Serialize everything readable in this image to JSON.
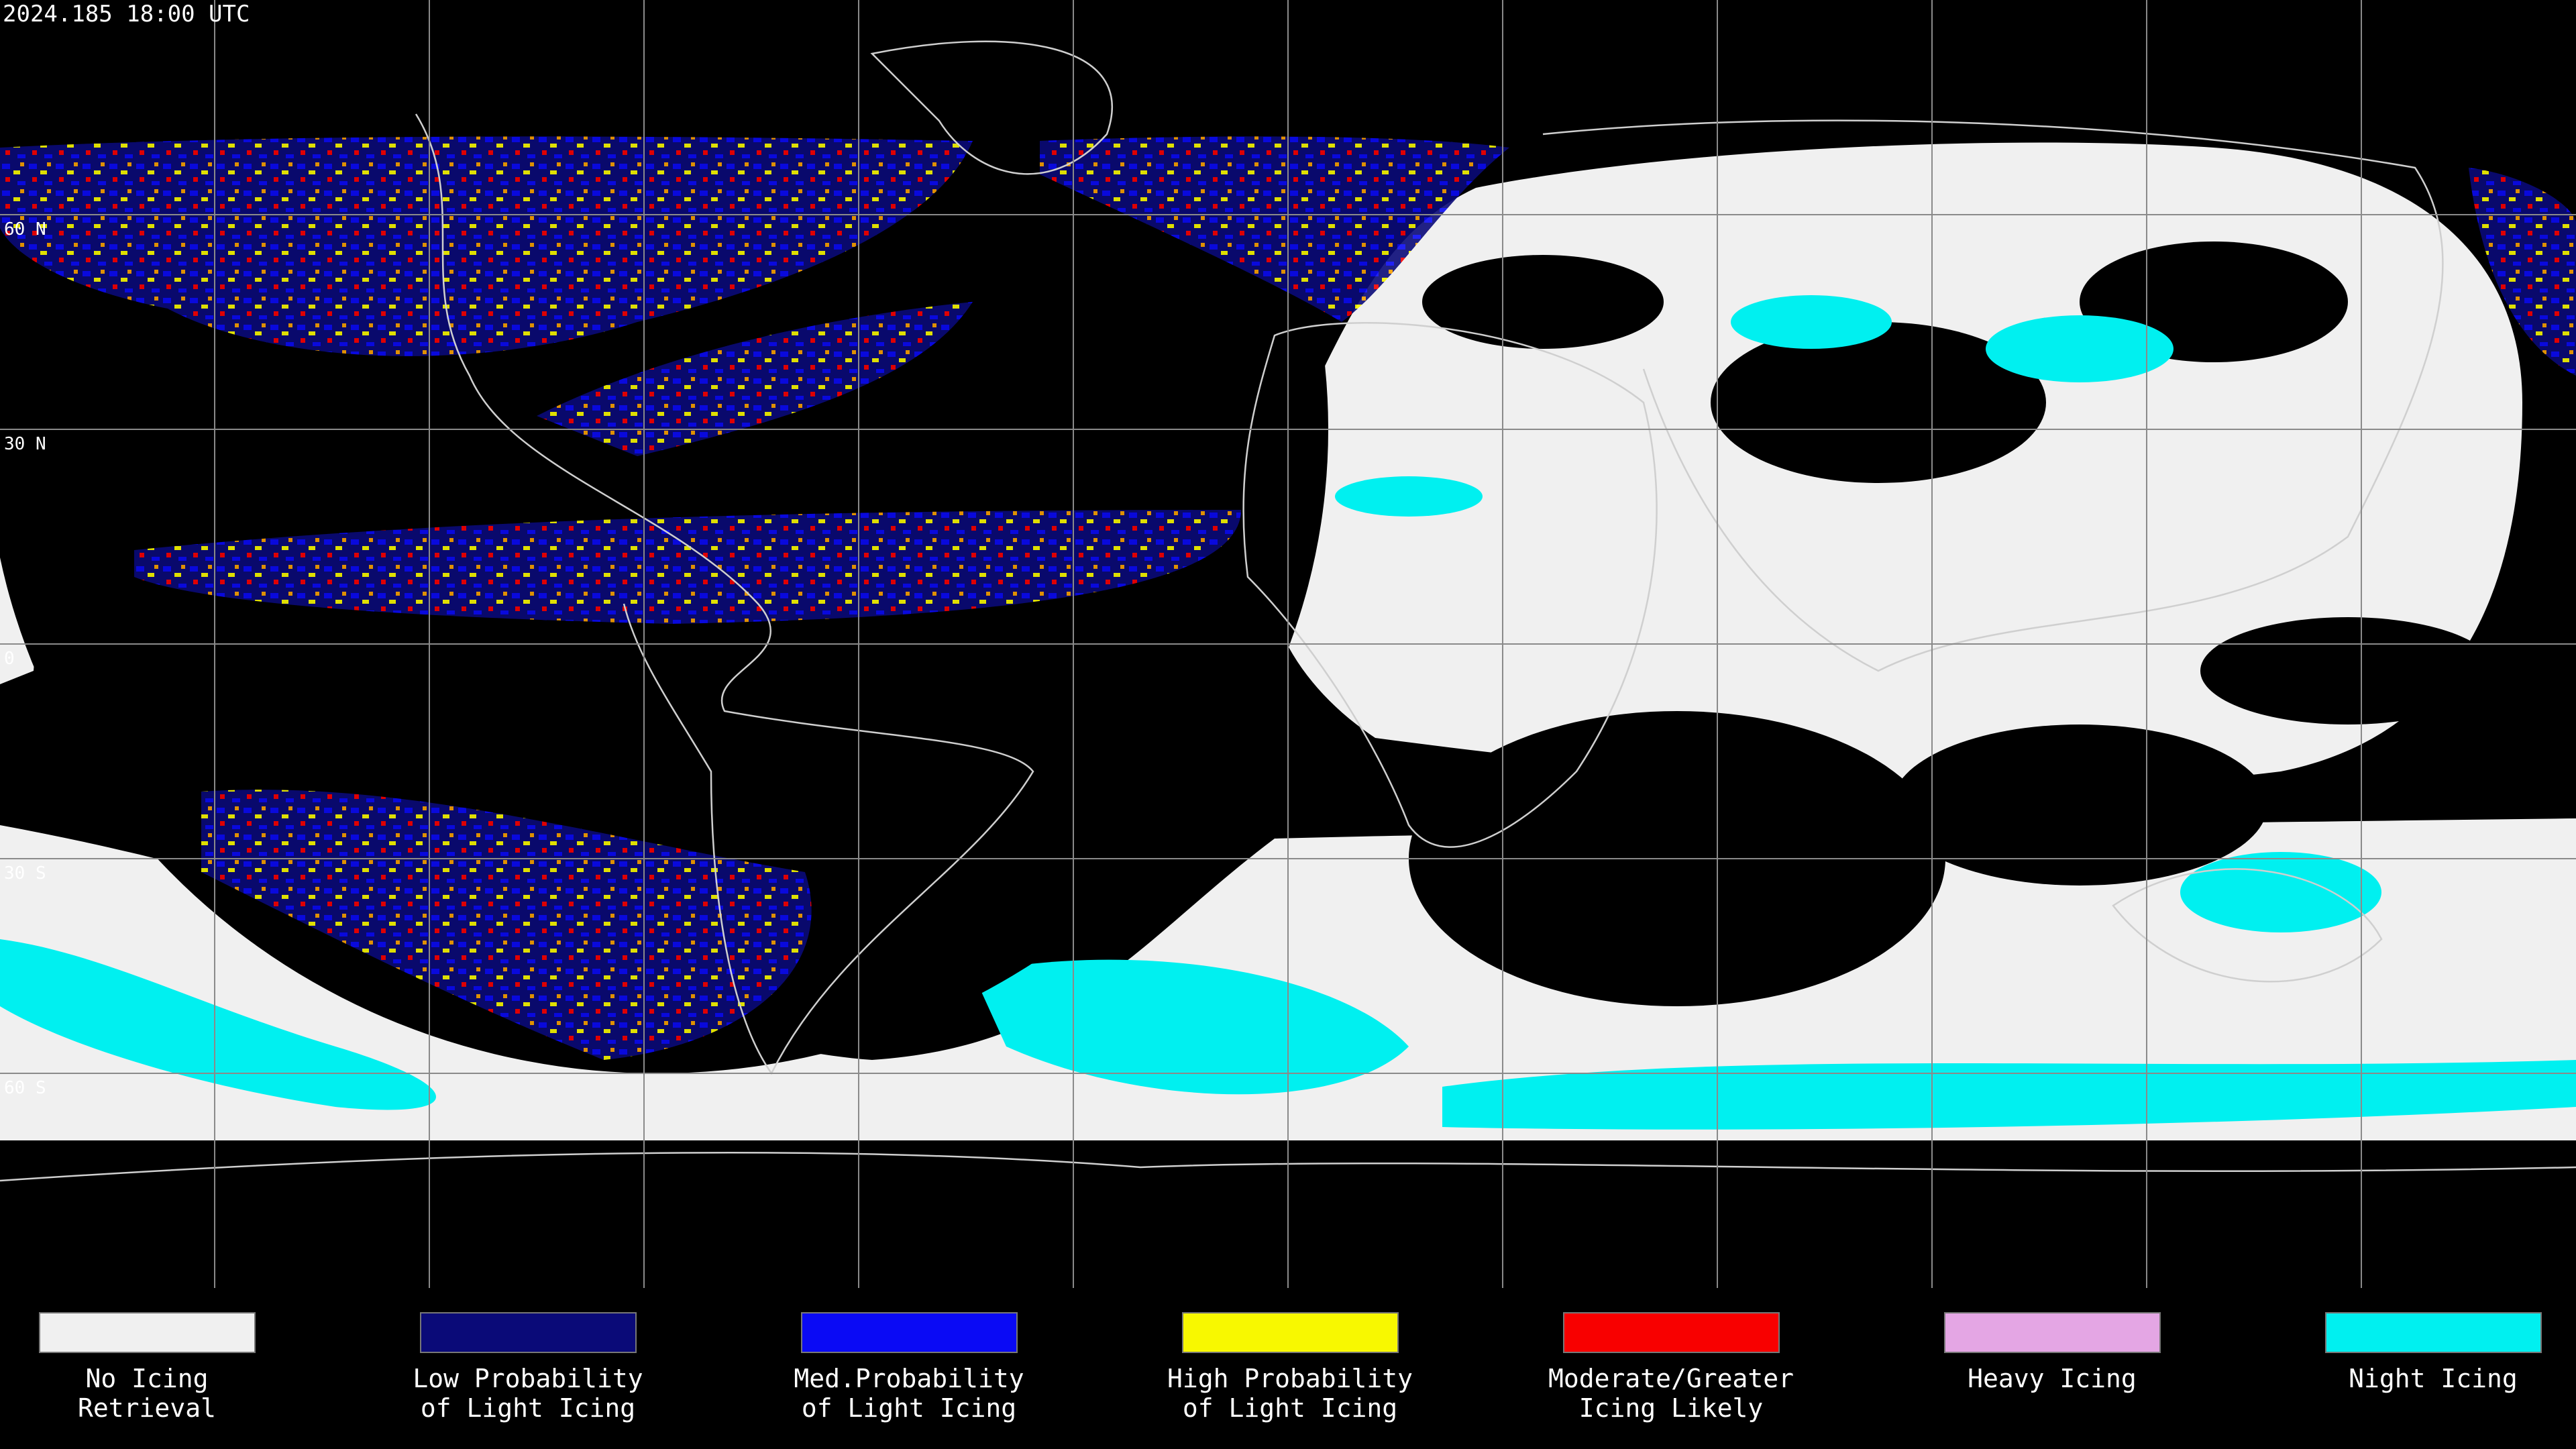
{
  "timestamp": "2024.185 18:00 UTC",
  "lat_labels": [
    "60 N",
    "30 N",
    "0",
    "30 S",
    "60 S"
  ],
  "legend": [
    {
      "label": [
        "No Icing",
        "Retrieval"
      ],
      "color": "#f0f0f0"
    },
    {
      "label": [
        "Low Probability",
        "of Light Icing"
      ],
      "color": "#0a0a78"
    },
    {
      "label": [
        "Med.Probability",
        "of Light Icing"
      ],
      "color": "#0a0af5"
    },
    {
      "label": [
        "High Probability",
        "of Light Icing"
      ],
      "color": "#f8f800"
    },
    {
      "label": [
        "Moderate/Greater",
        "Icing Likely"
      ],
      "color": "#f80000"
    },
    {
      "label": [
        "Heavy Icing"
      ],
      "color": "#e4a6e4"
    },
    {
      "label": [
        "Night Icing"
      ],
      "color": "#00f0f0"
    }
  ]
}
